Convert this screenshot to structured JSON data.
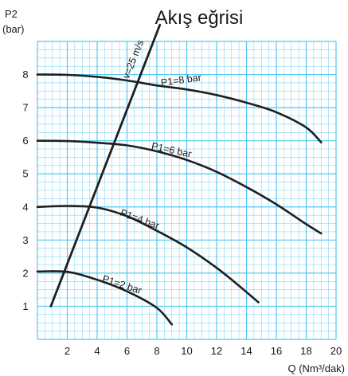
{
  "chart_data": {
    "type": "line",
    "title": "Akış eğrisi",
    "ylabel_lines": [
      "P2",
      "(bar)"
    ],
    "xlabel": "Q (Nm³/dak)",
    "xlim": [
      0,
      20
    ],
    "ylim": [
      0,
      9
    ],
    "x_ticks": [
      2,
      4,
      6,
      8,
      10,
      12,
      14,
      16,
      18,
      20
    ],
    "y_ticks": [
      1,
      2,
      3,
      4,
      5,
      6,
      7,
      8
    ],
    "grid": true,
    "grid_color": "#53c8f2",
    "line_color": "#1f1f1f",
    "series": [
      {
        "name": "P1=8 bar",
        "label_at": [
          8.3,
          7.65
        ],
        "label_angle": -8,
        "points": [
          [
            0,
            8.0
          ],
          [
            2,
            7.99
          ],
          [
            4,
            7.93
          ],
          [
            6,
            7.82
          ],
          [
            8,
            7.67
          ],
          [
            10,
            7.55
          ],
          [
            12,
            7.38
          ],
          [
            14,
            7.15
          ],
          [
            16,
            6.86
          ],
          [
            18,
            6.4
          ],
          [
            19,
            5.95
          ]
        ]
      },
      {
        "name": "P1=6 bar",
        "label_at": [
          7.6,
          5.75
        ],
        "label_angle": 12,
        "points": [
          [
            0,
            6.0
          ],
          [
            2,
            5.99
          ],
          [
            4,
            5.94
          ],
          [
            6,
            5.86
          ],
          [
            8,
            5.68
          ],
          [
            10,
            5.42
          ],
          [
            12,
            5.06
          ],
          [
            14,
            4.6
          ],
          [
            16,
            4.08
          ],
          [
            18,
            3.48
          ],
          [
            19,
            3.2
          ]
        ]
      },
      {
        "name": "P1=4 bar",
        "label_at": [
          5.5,
          3.75
        ],
        "label_angle": 20,
        "points": [
          [
            0,
            4.0
          ],
          [
            2,
            4.03
          ],
          [
            4,
            3.98
          ],
          [
            6,
            3.72
          ],
          [
            8,
            3.28
          ],
          [
            10,
            2.78
          ],
          [
            12,
            2.16
          ],
          [
            13.5,
            1.62
          ],
          [
            14.8,
            1.12
          ]
        ]
      },
      {
        "name": "P1=2 bar",
        "label_at": [
          4.3,
          1.75
        ],
        "label_angle": 18,
        "points": [
          [
            0,
            2.05
          ],
          [
            2,
            2.04
          ],
          [
            4,
            1.8
          ],
          [
            6,
            1.45
          ],
          [
            8,
            0.95
          ],
          [
            9,
            0.45
          ]
        ]
      }
    ],
    "annotation": {
      "text": "v=25 m/s",
      "label_at": [
        6.1,
        7.85
      ],
      "points": [
        [
          0.9,
          1.0
        ],
        [
          8.2,
          9.5
        ]
      ]
    }
  }
}
